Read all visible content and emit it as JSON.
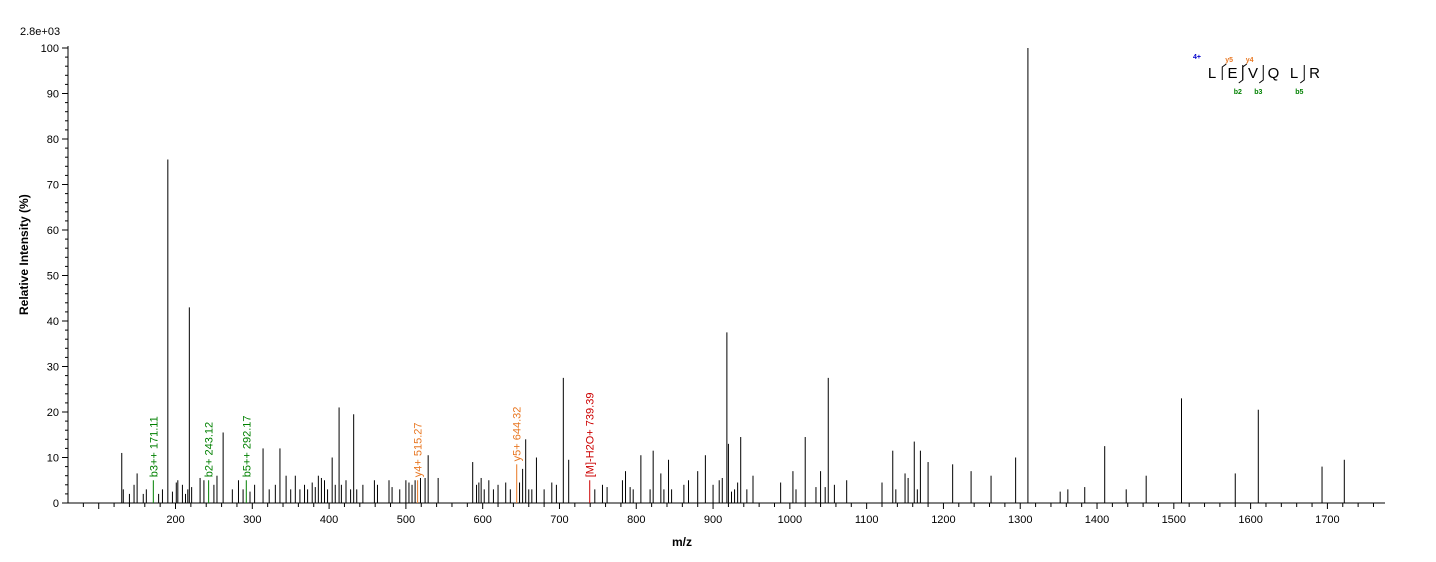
{
  "chart_data": {
    "type": "bar",
    "scale_label": "2.8e+03",
    "xlabel": "m/z",
    "ylabel": "Relative   Intensity (%)",
    "xlim": [
      60,
      1775
    ],
    "ylim": [
      0,
      100
    ],
    "x_ticks": [
      200,
      300,
      400,
      500,
      600,
      700,
      800,
      900,
      1000,
      1100,
      1200,
      1300,
      1400,
      1500,
      1600,
      1700
    ],
    "y_ticks": [
      0,
      10,
      20,
      30,
      40,
      50,
      60,
      70,
      80,
      90,
      100
    ],
    "colors": {
      "b_ion": "#008000",
      "y_ion": "#E87722",
      "precursor": "#CC0000",
      "charge": "#0000CC",
      "peak": "#000000"
    },
    "peaks": [
      {
        "x": 130,
        "y": 11
      },
      {
        "x": 132,
        "y": 3
      },
      {
        "x": 140,
        "y": 2
      },
      {
        "x": 146,
        "y": 4
      },
      {
        "x": 150,
        "y": 6.5
      },
      {
        "x": 158,
        "y": 2
      },
      {
        "x": 162,
        "y": 3
      },
      {
        "x": 171.11,
        "y": 5,
        "label": "b3++ 171.11",
        "ion": "b_ion"
      },
      {
        "x": 178,
        "y": 2
      },
      {
        "x": 183,
        "y": 3
      },
      {
        "x": 190,
        "y": 75.5
      },
      {
        "x": 196,
        "y": 2.5
      },
      {
        "x": 201,
        "y": 4.5
      },
      {
        "x": 203,
        "y": 5
      },
      {
        "x": 209,
        "y": 4
      },
      {
        "x": 213,
        "y": 2
      },
      {
        "x": 216,
        "y": 3
      },
      {
        "x": 218,
        "y": 43
      },
      {
        "x": 221,
        "y": 3.5
      },
      {
        "x": 232,
        "y": 5.5
      },
      {
        "x": 237,
        "y": 5
      },
      {
        "x": 243.12,
        "y": 5,
        "label": "b2+ 243.12",
        "ion": "b_ion"
      },
      {
        "x": 250,
        "y": 4
      },
      {
        "x": 254,
        "y": 6
      },
      {
        "x": 262,
        "y": 15.5
      },
      {
        "x": 274,
        "y": 3
      },
      {
        "x": 282,
        "y": 5
      },
      {
        "x": 288,
        "y": 3
      },
      {
        "x": 292.17,
        "y": 5,
        "label": "b5++ 292.17",
        "ion": "b_ion"
      },
      {
        "x": 297,
        "y": 2.5
      },
      {
        "x": 303,
        "y": 4
      },
      {
        "x": 314,
        "y": 12
      },
      {
        "x": 322,
        "y": 3
      },
      {
        "x": 330,
        "y": 4
      },
      {
        "x": 336,
        "y": 12
      },
      {
        "x": 344,
        "y": 6
      },
      {
        "x": 350,
        "y": 3
      },
      {
        "x": 356,
        "y": 6
      },
      {
        "x": 362,
        "y": 3
      },
      {
        "x": 368,
        "y": 4
      },
      {
        "x": 372,
        "y": 3
      },
      {
        "x": 378,
        "y": 4.5
      },
      {
        "x": 382,
        "y": 3.5
      },
      {
        "x": 386,
        "y": 6
      },
      {
        "x": 390,
        "y": 5.5
      },
      {
        "x": 394,
        "y": 5
      },
      {
        "x": 398,
        "y": 3
      },
      {
        "x": 404,
        "y": 10
      },
      {
        "x": 408,
        "y": 4
      },
      {
        "x": 413,
        "y": 21
      },
      {
        "x": 416,
        "y": 4
      },
      {
        "x": 422,
        "y": 5
      },
      {
        "x": 428,
        "y": 3
      },
      {
        "x": 432,
        "y": 19.5
      },
      {
        "x": 436,
        "y": 3
      },
      {
        "x": 444,
        "y": 4
      },
      {
        "x": 459,
        "y": 5
      },
      {
        "x": 463,
        "y": 4
      },
      {
        "x": 478,
        "y": 5
      },
      {
        "x": 482,
        "y": 3.5
      },
      {
        "x": 492,
        "y": 3
      },
      {
        "x": 500,
        "y": 5
      },
      {
        "x": 504,
        "y": 4.5
      },
      {
        "x": 508,
        "y": 4
      },
      {
        "x": 512,
        "y": 5
      },
      {
        "x": 515.27,
        "y": 5,
        "label": "y4+ 515.27",
        "ion": "y_ion"
      },
      {
        "x": 519,
        "y": 5.5
      },
      {
        "x": 525,
        "y": 5.5
      },
      {
        "x": 529,
        "y": 10.5
      },
      {
        "x": 542,
        "y": 5.5
      },
      {
        "x": 587,
        "y": 9
      },
      {
        "x": 592,
        "y": 4
      },
      {
        "x": 595,
        "y": 4.5
      },
      {
        "x": 598,
        "y": 5.5
      },
      {
        "x": 602,
        "y": 3
      },
      {
        "x": 608,
        "y": 5
      },
      {
        "x": 614,
        "y": 3
      },
      {
        "x": 620,
        "y": 4
      },
      {
        "x": 630,
        "y": 4.5
      },
      {
        "x": 636,
        "y": 3
      },
      {
        "x": 644.32,
        "y": 8.5,
        "label": "y5+ 644.32",
        "ion": "y_ion"
      },
      {
        "x": 648,
        "y": 4.5
      },
      {
        "x": 652,
        "y": 7.5
      },
      {
        "x": 656,
        "y": 14
      },
      {
        "x": 660,
        "y": 3
      },
      {
        "x": 664,
        "y": 3
      },
      {
        "x": 670,
        "y": 10
      },
      {
        "x": 680,
        "y": 3
      },
      {
        "x": 690,
        "y": 4.5
      },
      {
        "x": 696,
        "y": 4
      },
      {
        "x": 705,
        "y": 27.5
      },
      {
        "x": 712,
        "y": 9.5
      },
      {
        "x": 739.39,
        "y": 5,
        "label": "[M]-H2O+ 739.39",
        "ion": "precursor"
      },
      {
        "x": 746,
        "y": 3
      },
      {
        "x": 756,
        "y": 4
      },
      {
        "x": 762,
        "y": 3.5
      },
      {
        "x": 782,
        "y": 5
      },
      {
        "x": 786,
        "y": 7
      },
      {
        "x": 792,
        "y": 3.5
      },
      {
        "x": 796,
        "y": 3
      },
      {
        "x": 806,
        "y": 10.5
      },
      {
        "x": 818,
        "y": 3
      },
      {
        "x": 822,
        "y": 11.5
      },
      {
        "x": 832,
        "y": 6.5
      },
      {
        "x": 836,
        "y": 3
      },
      {
        "x": 842,
        "y": 9.5
      },
      {
        "x": 846,
        "y": 3
      },
      {
        "x": 862,
        "y": 4
      },
      {
        "x": 868,
        "y": 5
      },
      {
        "x": 880,
        "y": 7
      },
      {
        "x": 890,
        "y": 10.5
      },
      {
        "x": 900,
        "y": 4
      },
      {
        "x": 908,
        "y": 5
      },
      {
        "x": 912,
        "y": 5.5
      },
      {
        "x": 918,
        "y": 37.5
      },
      {
        "x": 920,
        "y": 13
      },
      {
        "x": 924,
        "y": 2.5
      },
      {
        "x": 928,
        "y": 3
      },
      {
        "x": 932,
        "y": 4.5
      },
      {
        "x": 936,
        "y": 14.5
      },
      {
        "x": 944,
        "y": 3
      },
      {
        "x": 952,
        "y": 6
      },
      {
        "x": 988,
        "y": 4.5
      },
      {
        "x": 1004,
        "y": 7
      },
      {
        "x": 1008,
        "y": 3
      },
      {
        "x": 1020,
        "y": 14.5
      },
      {
        "x": 1034,
        "y": 3.5
      },
      {
        "x": 1040,
        "y": 7
      },
      {
        "x": 1046,
        "y": 3.5
      },
      {
        "x": 1050,
        "y": 27.5
      },
      {
        "x": 1058,
        "y": 4
      },
      {
        "x": 1074,
        "y": 5
      },
      {
        "x": 1120,
        "y": 4.5
      },
      {
        "x": 1134,
        "y": 11.5
      },
      {
        "x": 1138,
        "y": 3
      },
      {
        "x": 1150,
        "y": 6.5
      },
      {
        "x": 1154,
        "y": 5.5
      },
      {
        "x": 1162,
        "y": 13.5
      },
      {
        "x": 1166,
        "y": 3
      },
      {
        "x": 1170,
        "y": 11.5
      },
      {
        "x": 1180,
        "y": 9
      },
      {
        "x": 1212,
        "y": 8.5
      },
      {
        "x": 1236,
        "y": 7
      },
      {
        "x": 1262,
        "y": 6
      },
      {
        "x": 1294,
        "y": 10
      },
      {
        "x": 1310,
        "y": 100
      },
      {
        "x": 1352,
        "y": 2.5
      },
      {
        "x": 1362,
        "y": 3
      },
      {
        "x": 1384,
        "y": 3.5
      },
      {
        "x": 1410,
        "y": 12.5
      },
      {
        "x": 1438,
        "y": 3
      },
      {
        "x": 1464,
        "y": 6
      },
      {
        "x": 1510,
        "y": 23
      },
      {
        "x": 1580,
        "y": 6.5
      },
      {
        "x": 1610,
        "y": 20.5
      },
      {
        "x": 1693,
        "y": 8
      },
      {
        "x": 1722,
        "y": 9.5
      }
    ],
    "sequence": {
      "charge_label": "4+",
      "residues": [
        "L",
        "E",
        "V",
        "Q",
        "L",
        "R"
      ],
      "y_fragments": [
        {
          "label": "y5",
          "after_index": 0
        },
        {
          "label": "y4",
          "after_index": 1
        }
      ],
      "b_fragments": [
        {
          "label": "b2",
          "after_index": 1
        },
        {
          "label": "b3",
          "after_index": 2
        },
        {
          "label": "b5",
          "after_index": 4
        }
      ]
    }
  }
}
